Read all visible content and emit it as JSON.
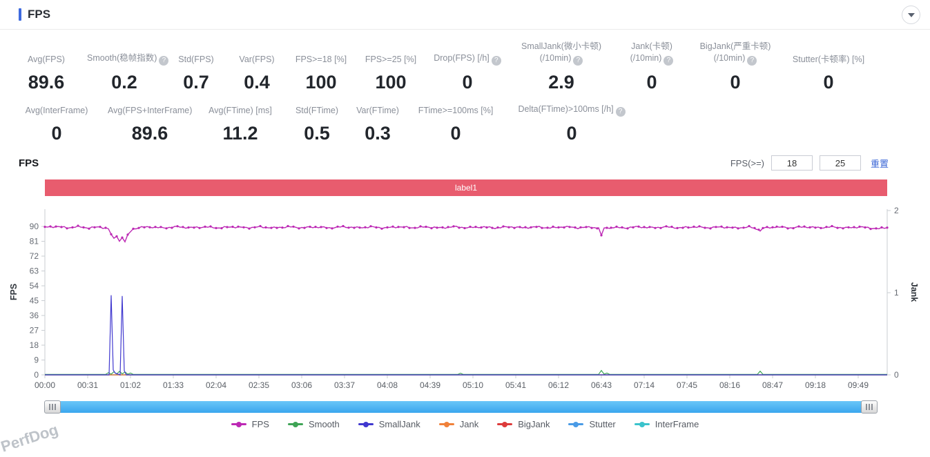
{
  "header": {
    "title": "FPS"
  },
  "watermark": "PerfDog",
  "stats_row1": [
    {
      "label": "Avg(FPS)",
      "value": "89.6"
    },
    {
      "label": "Smooth(稳帧指数)",
      "help": true,
      "value": "0.2"
    },
    {
      "label": "Std(FPS)",
      "value": "0.7"
    },
    {
      "label": "Var(FPS)",
      "value": "0.4"
    },
    {
      "label": "FPS>=18 [%]",
      "value": "100"
    },
    {
      "label": "FPS>=25 [%]",
      "value": "100"
    },
    {
      "label": "Drop(FPS) [/h]",
      "help": true,
      "value": "0"
    },
    {
      "label": "SmallJank(微小卡顿)",
      "label2": "(/10min)",
      "help": true,
      "value": "2.9"
    },
    {
      "label": "Jank(卡顿)",
      "label2": "(/10min)",
      "help": true,
      "value": "0"
    },
    {
      "label": "BigJank(严重卡顿)",
      "label2": "(/10min)",
      "help": true,
      "value": "0"
    },
    {
      "label": "Stutter(卡顿率) [%]",
      "value": "0"
    }
  ],
  "stats_row2": [
    {
      "label": "Avg(InterFrame)",
      "value": "0"
    },
    {
      "label": "Avg(FPS+InterFrame)",
      "value": "89.6"
    },
    {
      "label": "Avg(FTime) [ms]",
      "value": "11.2"
    },
    {
      "label": "Std(FTime)",
      "value": "0.5"
    },
    {
      "label": "Var(FTime)",
      "value": "0.3"
    },
    {
      "label": "FTime>=100ms [%]",
      "value": "0"
    },
    {
      "label": "Delta(FTime)>100ms [/h]",
      "help": true,
      "value": "0"
    }
  ],
  "section": {
    "title": "FPS",
    "filter_label": "FPS(>=)",
    "filter_min": "18",
    "filter_max": "25",
    "reset_label": "重置"
  },
  "chart": {
    "label_bar": "label1"
  },
  "chart_data": {
    "type": "line",
    "title": "",
    "x_axis": {
      "tick_labels": [
        "00:00",
        "00:31",
        "01:02",
        "01:33",
        "02:04",
        "02:35",
        "03:06",
        "03:37",
        "04:08",
        "04:39",
        "05:10",
        "05:41",
        "06:12",
        "06:43",
        "07:14",
        "07:45",
        "08:16",
        "08:47",
        "09:18",
        "09:49"
      ],
      "tick_seconds": [
        0,
        31,
        62,
        93,
        124,
        155,
        186,
        217,
        248,
        279,
        310,
        341,
        372,
        403,
        434,
        465,
        496,
        527,
        558,
        589
      ],
      "range_seconds": [
        0,
        610
      ]
    },
    "y_left": {
      "label": "FPS",
      "ticks": [
        0,
        9,
        18,
        27,
        36,
        45,
        54,
        63,
        72,
        81,
        90
      ],
      "range": [
        0,
        100
      ]
    },
    "y_right": {
      "label": "Jank",
      "ticks": [
        0,
        1,
        2
      ],
      "range": [
        0,
        2
      ]
    },
    "legend": [
      "FPS",
      "Smooth",
      "SmallJank",
      "Jank",
      "BigJank",
      "Stutter",
      "InterFrame"
    ],
    "series": [
      {
        "name": "Stutter",
        "color": "#4a9be6",
        "axis": "right",
        "points": [
          [
            0,
            0
          ],
          [
            610,
            0
          ]
        ]
      },
      {
        "name": "InterFrame",
        "color": "#3bc3cc",
        "axis": "right",
        "points": [
          [
            0,
            0
          ],
          [
            610,
            0
          ]
        ]
      },
      {
        "name": "BigJank",
        "color": "#dd3b3b",
        "axis": "right",
        "points": [
          [
            0,
            0
          ],
          [
            610,
            0
          ]
        ]
      },
      {
        "name": "Jank",
        "color": "#f0813a",
        "axis": "right",
        "points": [
          [
            0,
            0
          ],
          [
            610,
            0
          ]
        ]
      },
      {
        "name": "Smooth",
        "color": "#3fa456",
        "axis": "left",
        "points": [
          [
            0,
            0.25
          ],
          [
            44,
            0.25
          ],
          [
            46,
            1.3
          ],
          [
            48,
            0.4
          ],
          [
            50,
            1.9
          ],
          [
            52,
            0.5
          ],
          [
            54,
            2.1
          ],
          [
            56,
            0.6
          ],
          [
            58,
            1.7
          ],
          [
            60,
            0.4
          ],
          [
            62,
            1.1
          ],
          [
            64,
            0.25
          ],
          [
            299,
            0.25
          ],
          [
            301,
            1.0
          ],
          [
            303,
            0.25
          ],
          [
            401,
            0.3
          ],
          [
            403,
            2.7
          ],
          [
            405,
            0.4
          ],
          [
            407,
            1.1
          ],
          [
            409,
            0.3
          ],
          [
            516,
            0.3
          ],
          [
            518,
            2.2
          ],
          [
            520,
            0.3
          ],
          [
            610,
            0.25
          ]
        ]
      },
      {
        "name": "SmallJank",
        "color": "#4038cf",
        "axis": "right",
        "points": [
          [
            0,
            0
          ],
          [
            46.5,
            0
          ],
          [
            48,
            0.97
          ],
          [
            49.5,
            0.06
          ],
          [
            51,
            0.02
          ],
          [
            54.5,
            0
          ],
          [
            56,
            0.96
          ],
          [
            57.5,
            0.05
          ],
          [
            59,
            0
          ],
          [
            610,
            0
          ]
        ]
      },
      {
        "name": "FPS",
        "color": "#bc28b4",
        "axis": "left",
        "densify": true,
        "markers": true,
        "points": [
          [
            0,
            89.5
          ],
          [
            8,
            90
          ],
          [
            16,
            89.2
          ],
          [
            24,
            89.8
          ],
          [
            32,
            89.1
          ],
          [
            40,
            89.7
          ],
          [
            46,
            88.6
          ],
          [
            48,
            85
          ],
          [
            50,
            82.5
          ],
          [
            52,
            84.5
          ],
          [
            54,
            81
          ],
          [
            56,
            83.5
          ],
          [
            58,
            80.6
          ],
          [
            60,
            84.5
          ],
          [
            62,
            87
          ],
          [
            64,
            88.5
          ],
          [
            68,
            89.3
          ],
          [
            76,
            89.7
          ],
          [
            86,
            89.1
          ],
          [
            96,
            89.8
          ],
          [
            106,
            89.2
          ],
          [
            116,
            89.7
          ],
          [
            126,
            89.1
          ],
          [
            136,
            89.8
          ],
          [
            146,
            89.2
          ],
          [
            156,
            89.7
          ],
          [
            166,
            89.1
          ],
          [
            176,
            89.8
          ],
          [
            186,
            89.2
          ],
          [
            196,
            89.7
          ],
          [
            206,
            89.1
          ],
          [
            216,
            89.8
          ],
          [
            226,
            89.2
          ],
          [
            236,
            89.7
          ],
          [
            246,
            89.1
          ],
          [
            256,
            89.8
          ],
          [
            266,
            89.2
          ],
          [
            276,
            89.7
          ],
          [
            286,
            89.1
          ],
          [
            296,
            89.8
          ],
          [
            306,
            89.2
          ],
          [
            316,
            89.7
          ],
          [
            326,
            89.1
          ],
          [
            336,
            89.8
          ],
          [
            346,
            89.2
          ],
          [
            356,
            89.7
          ],
          [
            366,
            89.1
          ],
          [
            376,
            89.8
          ],
          [
            386,
            89.2
          ],
          [
            396,
            89.6
          ],
          [
            401,
            88.8
          ],
          [
            403,
            84.6
          ],
          [
            405,
            88.8
          ],
          [
            410,
            89.5
          ],
          [
            420,
            89.1
          ],
          [
            430,
            89.8
          ],
          [
            440,
            89.2
          ],
          [
            450,
            89.7
          ],
          [
            460,
            89.1
          ],
          [
            470,
            89.8
          ],
          [
            480,
            89.2
          ],
          [
            490,
            89.7
          ],
          [
            500,
            89.1
          ],
          [
            510,
            89.6
          ],
          [
            515,
            88.8
          ],
          [
            518,
            87.6
          ],
          [
            521,
            89
          ],
          [
            530,
            89.7
          ],
          [
            540,
            89.1
          ],
          [
            550,
            89.8
          ],
          [
            560,
            89.2
          ],
          [
            570,
            89.7
          ],
          [
            580,
            89.1
          ],
          [
            590,
            89.7
          ],
          [
            598,
            89
          ],
          [
            604,
            88.6
          ],
          [
            610,
            89.3
          ]
        ]
      }
    ]
  }
}
